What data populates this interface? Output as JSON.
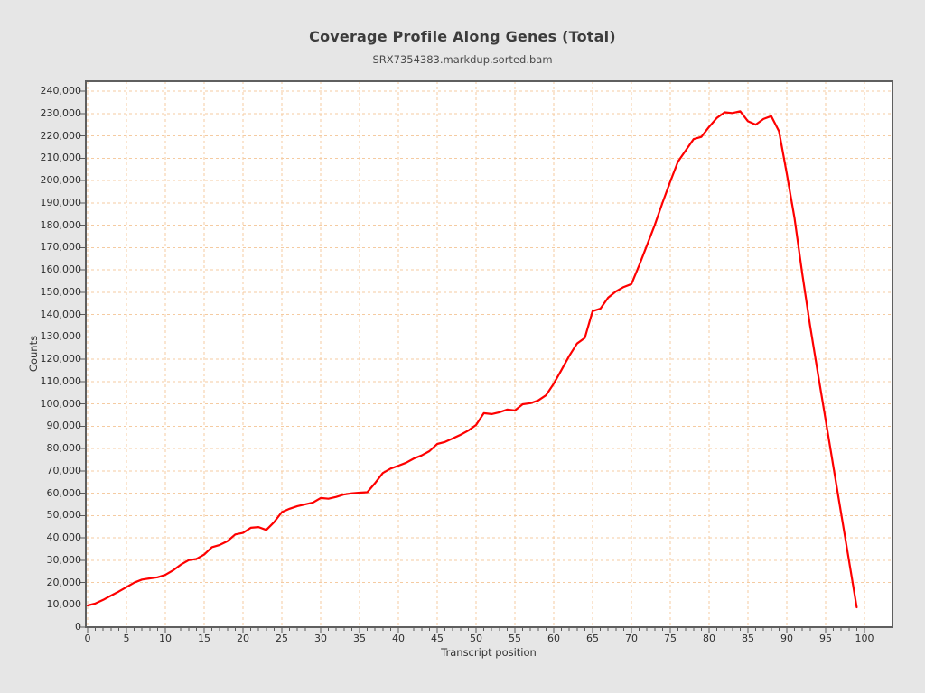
{
  "title": "Coverage Profile Along Genes (Total)",
  "subtitle": "SRX7354383.markdup.sorted.bam",
  "colors": {
    "page_background": "#e6e6e6",
    "plot_background": "#ffffff",
    "plot_border": "#5f5f5f",
    "grid": "#f5cba1",
    "tick": "#5a5a5a",
    "line": "#fe0000",
    "text": "#333333"
  },
  "chart_data": {
    "type": "line",
    "title": "Coverage Profile Along Genes (Total)",
    "subtitle": "SRX7354383.markdup.sorted.bam",
    "xlabel": "Transcript position",
    "ylabel": "Counts",
    "xlim": [
      0,
      100
    ],
    "ylim": [
      0,
      240000
    ],
    "grid": true,
    "grid_style": "dashed",
    "legend_position": "none",
    "x_ticks": [
      0,
      5,
      10,
      15,
      20,
      25,
      30,
      35,
      40,
      45,
      50,
      55,
      60,
      65,
      70,
      75,
      80,
      85,
      90,
      95,
      100
    ],
    "y_ticks": [
      0,
      10000,
      20000,
      30000,
      40000,
      50000,
      60000,
      70000,
      80000,
      90000,
      100000,
      110000,
      120000,
      130000,
      140000,
      150000,
      160000,
      170000,
      180000,
      190000,
      200000,
      210000,
      220000,
      230000,
      240000
    ],
    "series": [
      {
        "name": "Total coverage",
        "color": "#fe0000",
        "x_start": 0,
        "x_step": 1,
        "values": [
          9700,
          10600,
          12200,
          14100,
          15900,
          17900,
          19900,
          21300,
          21800,
          22300,
          23400,
          25400,
          28000,
          30000,
          30500,
          32500,
          35800,
          36800,
          38500,
          41500,
          42200,
          44500,
          44800,
          43500,
          47000,
          51500,
          53000,
          54200,
          55000,
          55800,
          57800,
          57500,
          58300,
          59400,
          59900,
          60200,
          60400,
          64500,
          69000,
          71000,
          72300,
          73600,
          75500,
          76900,
          78800,
          82000,
          82900,
          84500,
          86100,
          88000,
          90500,
          95800,
          95400,
          96200,
          97400,
          97000,
          99800,
          100300,
          101500,
          103800,
          109000,
          115200,
          121500,
          127000,
          129500,
          141500,
          142600,
          147500,
          150300,
          152300,
          153600,
          162000,
          171000,
          180000,
          190000,
          199500,
          208500,
          213500,
          218500,
          219500,
          224000,
          228000,
          230500,
          230200,
          231000,
          226500,
          225000,
          227500,
          228800,
          222000,
          203000,
          183000,
          158000,
          135000,
          113700,
          92800,
          71800,
          50800,
          29900,
          8900
        ]
      }
    ]
  }
}
